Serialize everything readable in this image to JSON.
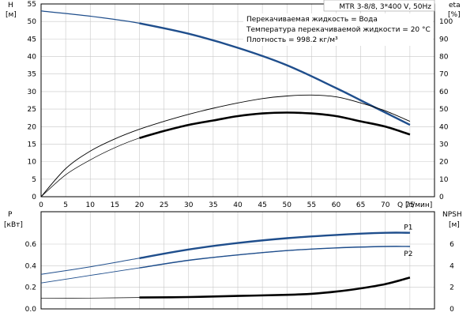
{
  "chart_data": [
    {
      "type": "line",
      "panel": "upper",
      "title": "MTR 3-8/8, 3*400 V, 50Hz",
      "annotations": [
        "Перекачиваемая жидкость = Вода",
        "Температура перекачиваемой жидкости = 20 °C",
        "Плотность = 998.2 кг/м³"
      ],
      "xlabel": "Q [л/мин]",
      "ylabel_left": [
        "H",
        "[м]"
      ],
      "ylabel_right": [
        "eta",
        "[%]"
      ],
      "xlim": [
        0,
        80
      ],
      "ylim_left": [
        0,
        55
      ],
      "ylim_right": [
        0,
        110
      ],
      "x_ticks": [
        0,
        5,
        10,
        15,
        20,
        25,
        30,
        35,
        40,
        45,
        50,
        55,
        60,
        65,
        70,
        75,
        80
      ],
      "y_ticks_left": [
        0,
        5,
        10,
        15,
        20,
        25,
        30,
        35,
        40,
        45,
        50,
        55
      ],
      "y_ticks_right": [
        0,
        10,
        20,
        30,
        40,
        50,
        60,
        70,
        80,
        90,
        100
      ],
      "grid": true,
      "series": [
        {
          "axis": "left",
          "color": "#1f4e8c",
          "x": [
            0,
            10,
            20,
            30,
            40,
            50,
            60,
            65,
            70,
            75
          ],
          "values": [
            53,
            51.5,
            49.5,
            46.5,
            42.5,
            37.5,
            31,
            27.5,
            24,
            20.5
          ]
        },
        {
          "axis": "right",
          "color": "#000000",
          "x": [
            0,
            5,
            10,
            15,
            20,
            25,
            30,
            35,
            40,
            45,
            50,
            55,
            60,
            65,
            70,
            75
          ],
          "values": [
            0,
            16,
            26,
            33,
            38.5,
            43,
            47,
            50.5,
            53.5,
            56,
            57.5,
            58,
            57,
            53.5,
            49,
            43
          ]
        },
        {
          "axis": "right",
          "color": "#000000",
          "x": [
            0,
            5,
            10,
            15,
            20,
            25,
            30,
            35,
            40,
            45,
            50,
            55,
            60,
            65,
            70,
            75
          ],
          "values": [
            0,
            12.5,
            21,
            28,
            33.5,
            37.5,
            41,
            43.5,
            46,
            47.5,
            48,
            47.5,
            46,
            43,
            40,
            35.5
          ]
        }
      ]
    },
    {
      "type": "line",
      "panel": "lower",
      "xlim": [
        0,
        80
      ],
      "ylim_left": [
        0,
        0.9
      ],
      "ylim_right": [
        0,
        9
      ],
      "ylabel_left": [
        "P",
        "[кВт]"
      ],
      "ylabel_right": [
        "NPSH",
        "[м]"
      ],
      "y_ticks_left": [
        "0.0",
        "0.2",
        "0.4",
        "0.6"
      ],
      "y_ticks_right": [
        "0",
        "2",
        "4",
        "6"
      ],
      "grid": true,
      "series": [
        {
          "name": "P1",
          "axis": "left",
          "color": "#1f4e8c",
          "x": [
            0,
            10,
            20,
            30,
            40,
            50,
            60,
            70,
            75
          ],
          "values": [
            0.32,
            0.39,
            0.47,
            0.55,
            0.61,
            0.655,
            0.685,
            0.705,
            0.705
          ]
        },
        {
          "name": "P2",
          "axis": "left",
          "color": "#1f4e8c",
          "x": [
            0,
            10,
            20,
            30,
            40,
            50,
            60,
            70,
            75
          ],
          "values": [
            0.24,
            0.31,
            0.38,
            0.45,
            0.5,
            0.54,
            0.565,
            0.578,
            0.578
          ]
        },
        {
          "axis": "right",
          "color": "#000000",
          "x": [
            0,
            10,
            20,
            30,
            40,
            50,
            55,
            60,
            65,
            70,
            75
          ],
          "values": [
            1.0,
            1.0,
            1.05,
            1.1,
            1.2,
            1.3,
            1.4,
            1.6,
            1.9,
            2.3,
            2.9
          ]
        }
      ]
    }
  ]
}
